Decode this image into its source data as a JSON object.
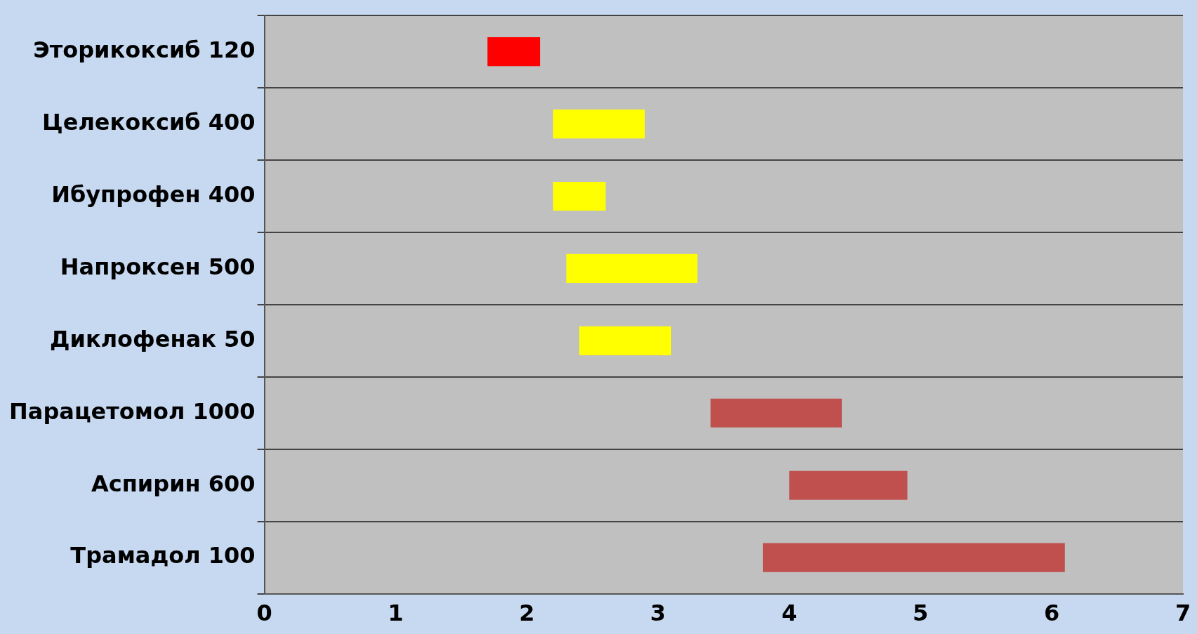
{
  "chart_data": {
    "type": "bar",
    "orientation": "horizontal",
    "categories": [
      "Эторикоксиб 120",
      "Целекоксиб 400",
      "Ибупрофен 400",
      "Напроксен 500",
      "Диклофенак 50",
      "Парацетомол 1000",
      "Аспирин 600",
      "Трамадол 100"
    ],
    "base": [
      1.7,
      2.2,
      2.2,
      2.3,
      2.4,
      3.4,
      4.0,
      3.8
    ],
    "values": [
      0.4,
      0.7,
      0.4,
      1.0,
      0.7,
      1.0,
      0.9,
      2.3
    ],
    "colors": [
      "#ff0000",
      "#ffff00",
      "#ffff00",
      "#ffff00",
      "#ffff00",
      "#c0504d",
      "#c0504d",
      "#c0504d"
    ],
    "xlim": [
      0,
      7
    ],
    "xticks": [
      0,
      1,
      2,
      3,
      4,
      5,
      6,
      7
    ],
    "grid": "y",
    "legend": false
  }
}
